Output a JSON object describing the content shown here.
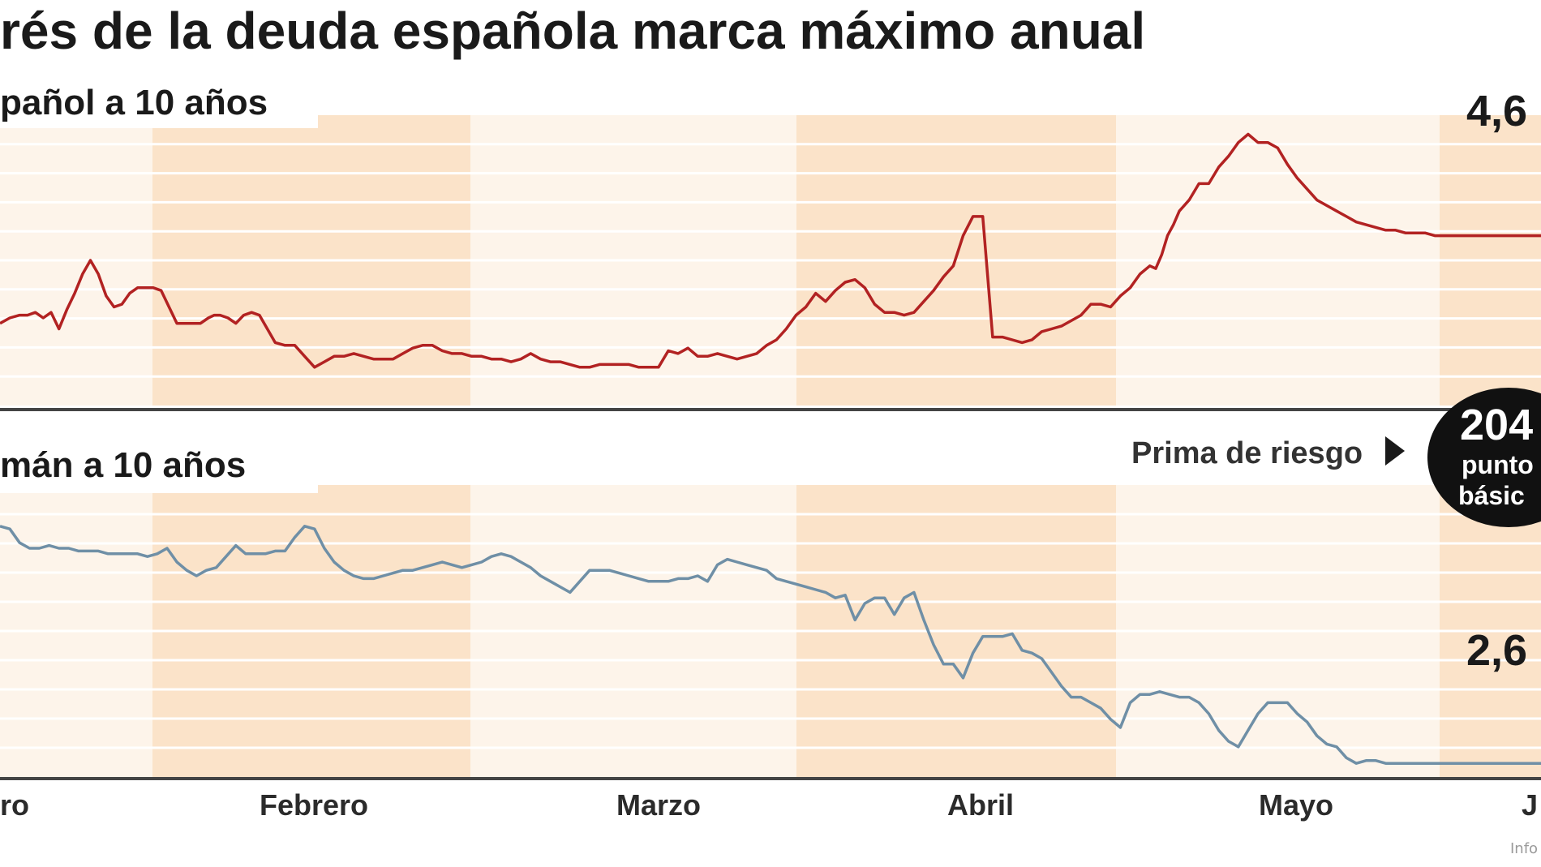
{
  "title": "rés de la deuda española marca máximo anual",
  "credit": "Info",
  "colors": {
    "band_light": "#fdf4ea",
    "band_dark": "#fbe3c9",
    "grid": "#ffffff",
    "divider": "#444444",
    "spain_line": "#b22222",
    "germany_line": "#6f8fa6",
    "badge": "#111111"
  },
  "chart_data": [
    {
      "type": "line",
      "panel": "top",
      "label": "pañol a 10 años",
      "months": [
        "ro",
        "Febrero",
        "Marzo",
        "Abril",
        "Mayo",
        "J"
      ],
      "end_label": "4,6",
      "ylim": [
        0,
        100
      ],
      "series": [
        {
          "color": "#b22222",
          "x": [
            0,
            10,
            20,
            28,
            36,
            44,
            52,
            60,
            68,
            76,
            84,
            92,
            100,
            108,
            116,
            124,
            132,
            140,
            148,
            156,
            164,
            172,
            180,
            188,
            196,
            204,
            212,
            218,
            224,
            232,
            240,
            248,
            256,
            264,
            272,
            280,
            290,
            300,
            310,
            320,
            330,
            340,
            350,
            360,
            370,
            380,
            390,
            400,
            410,
            420,
            430,
            440,
            450,
            460,
            470,
            480,
            490,
            500,
            510,
            520,
            530,
            540,
            550,
            560,
            570,
            580,
            590,
            600,
            610,
            620,
            630,
            640,
            650,
            660,
            670,
            680,
            690,
            700,
            710,
            720,
            730,
            740,
            750,
            760,
            770,
            780,
            790,
            800,
            810,
            820,
            830,
            840,
            850,
            860,
            870,
            880,
            890,
            900,
            910,
            920,
            930,
            940,
            950,
            960,
            970,
            980,
            990,
            1000,
            1010,
            1020,
            1030,
            1040,
            1050,
            1060,
            1070,
            1080,
            1090,
            1100,
            1110,
            1120,
            1130,
            1140,
            1150,
            1160,
            1170,
            1176,
            1182,
            1188,
            1194,
            1200,
            1210,
            1220,
            1230,
            1240,
            1250,
            1260,
            1270,
            1280,
            1290,
            1300,
            1310,
            1320,
            1330,
            1340,
            1350,
            1360,
            1370,
            1380,
            1390,
            1400,
            1410,
            1420,
            1430,
            1440,
            1450,
            1460,
            1470,
            1480,
            1490,
            1500,
            1510,
            1520,
            1530,
            1540,
            1550,
            1560,
            1568
          ],
          "y": [
            27,
            29,
            30,
            30,
            31,
            29,
            31,
            25,
            32,
            38,
            45,
            50,
            45,
            37,
            33,
            34,
            38,
            40,
            40,
            40,
            39,
            33,
            27,
            27,
            27,
            27,
            29,
            30,
            30,
            29,
            27,
            30,
            31,
            30,
            25,
            20,
            19,
            19,
            15,
            11,
            13,
            15,
            15,
            16,
            15,
            14,
            14,
            14,
            16,
            18,
            19,
            19,
            17,
            16,
            16,
            15,
            15,
            14,
            14,
            13,
            14,
            16,
            14,
            13,
            13,
            12,
            11,
            11,
            12,
            12,
            12,
            12,
            11,
            11,
            11,
            17,
            16,
            18,
            15,
            15,
            16,
            15,
            14,
            15,
            16,
            19,
            21,
            25,
            30,
            33,
            38,
            35,
            39,
            42,
            43,
            40,
            34,
            31,
            31,
            30,
            31,
            35,
            39,
            44,
            48,
            59,
            66,
            66,
            22,
            22,
            21,
            20,
            21,
            24,
            25,
            26,
            28,
            30,
            34,
            34,
            33,
            37,
            40,
            45,
            48,
            47,
            52,
            59,
            63,
            68,
            72,
            78,
            78,
            84,
            88,
            93,
            96,
            93,
            93,
            91,
            85,
            80,
            76,
            72,
            70,
            68,
            66,
            64,
            63,
            62,
            61,
            61,
            60,
            60,
            60,
            59,
            59,
            59,
            59,
            59,
            59,
            59,
            59,
            59,
            59,
            59,
            59
          ]
        }
      ]
    },
    {
      "type": "line",
      "panel": "bottom",
      "label": "mán  a 10 años",
      "end_label": "2,6",
      "ylim": [
        0,
        100
      ],
      "series": [
        {
          "color": "#6f8fa6",
          "x": [
            0,
            10,
            20,
            30,
            40,
            50,
            60,
            70,
            80,
            90,
            100,
            110,
            120,
            130,
            140,
            150,
            160,
            170,
            180,
            190,
            200,
            210,
            220,
            230,
            240,
            250,
            260,
            270,
            280,
            290,
            300,
            310,
            320,
            330,
            340,
            350,
            360,
            370,
            380,
            390,
            400,
            410,
            420,
            430,
            440,
            450,
            460,
            470,
            480,
            490,
            500,
            510,
            520,
            530,
            540,
            550,
            560,
            570,
            580,
            590,
            600,
            610,
            620,
            630,
            640,
            650,
            660,
            670,
            680,
            690,
            700,
            710,
            720,
            730,
            740,
            750,
            760,
            770,
            780,
            790,
            800,
            810,
            820,
            830,
            840,
            850,
            860,
            870,
            880,
            890,
            900,
            910,
            920,
            930,
            940,
            950,
            960,
            970,
            980,
            990,
            1000,
            1010,
            1020,
            1030,
            1040,
            1050,
            1060,
            1070,
            1080,
            1090,
            1100,
            1110,
            1120,
            1130,
            1140,
            1150,
            1160,
            1170,
            1180,
            1190,
            1200,
            1210,
            1220,
            1230,
            1240,
            1250,
            1260,
            1270,
            1280,
            1290,
            1300,
            1310,
            1320,
            1330,
            1340,
            1350,
            1360,
            1370,
            1380,
            1390,
            1400,
            1410,
            1420,
            1430,
            1440,
            1450,
            1460,
            1470,
            1480,
            1490,
            1500,
            1510,
            1520,
            1530,
            1540,
            1550,
            1560,
            1568
          ],
          "y": [
            88,
            87,
            82,
            80,
            80,
            81,
            80,
            80,
            79,
            79,
            79,
            78,
            78,
            78,
            78,
            77,
            78,
            80,
            75,
            72,
            70,
            72,
            73,
            77,
            81,
            78,
            78,
            78,
            79,
            79,
            84,
            88,
            87,
            80,
            75,
            72,
            70,
            69,
            69,
            70,
            71,
            72,
            72,
            73,
            74,
            75,
            74,
            73,
            74,
            75,
            77,
            78,
            77,
            75,
            73,
            70,
            68,
            66,
            64,
            68,
            72,
            72,
            72,
            71,
            70,
            69,
            68,
            68,
            68,
            69,
            69,
            70,
            68,
            74,
            76,
            75,
            74,
            73,
            72,
            69,
            68,
            67,
            66,
            65,
            64,
            62,
            63,
            54,
            60,
            62,
            62,
            56,
            62,
            64,
            54,
            45,
            38,
            38,
            33,
            42,
            48,
            48,
            48,
            49,
            43,
            42,
            40,
            35,
            30,
            26,
            26,
            24,
            22,
            18,
            15,
            24,
            27,
            27,
            28,
            27,
            26,
            26,
            24,
            20,
            14,
            10,
            8,
            14,
            20,
            24,
            24,
            24,
            20,
            17,
            12,
            9,
            8,
            4,
            2,
            3,
            3,
            2,
            2,
            2,
            2,
            2,
            2,
            2,
            2,
            2,
            2,
            2,
            2,
            2,
            2,
            2,
            2,
            2
          ]
        }
      ]
    }
  ],
  "prima": {
    "label": "Prima de riesgo",
    "value": "204",
    "unit_line1": "punto",
    "unit_line2": "básic"
  }
}
